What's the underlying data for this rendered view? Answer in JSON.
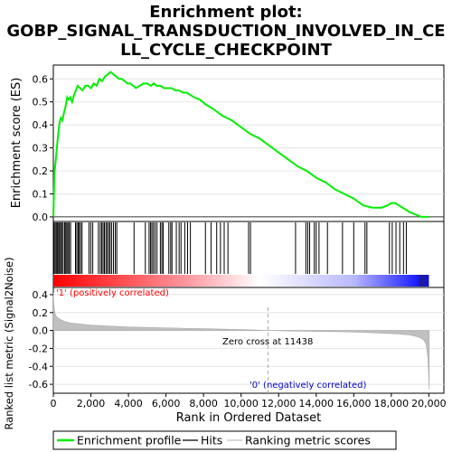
{
  "chart_data": [
    {
      "type": "line",
      "title_lines": [
        "Enrichment plot:",
        "GOBP_SIGNAL_TRANSDUCTION_INVOLVED_IN_CE",
        "LL_CYCLE_CHECKPOINT"
      ],
      "ylabel": "Enrichment score (ES)",
      "xlim": [
        0,
        20800
      ],
      "ylim": [
        -0.02,
        0.66
      ],
      "yticks": [
        0.0,
        0.1,
        0.2,
        0.3,
        0.4,
        0.5,
        0.6
      ],
      "ytick_labels": [
        "0.0",
        "0.1",
        "0.2",
        "0.3",
        "0.4",
        "0.5",
        "0.6"
      ],
      "series": [
        {
          "name": "Enrichment profile",
          "color": "#00ee00",
          "x": [
            0,
            60,
            120,
            200,
            260,
            330,
            400,
            480,
            560,
            650,
            740,
            820,
            900,
            1000,
            1100,
            1200,
            1300,
            1420,
            1550,
            1700,
            1850,
            2000,
            2150,
            2300,
            2450,
            2600,
            2750,
            2900,
            3050,
            3200,
            3350,
            3500,
            3650,
            3800,
            3950,
            4100,
            4250,
            4400,
            4600,
            4800,
            5000,
            5200,
            5350,
            5500,
            5700,
            5900,
            6100,
            6300,
            6500,
            6700,
            6900,
            7100,
            7300,
            7500,
            7800,
            8100,
            8500,
            9000,
            9500,
            10000,
            10500,
            11000,
            11500,
            12000,
            12500,
            13000,
            13500,
            14000,
            14500,
            15000,
            15500,
            16000,
            16500,
            17000,
            17500,
            17800,
            18000,
            18200,
            18400,
            18600,
            18800,
            19000,
            19300,
            19600,
            20000
          ],
          "y": [
            0.0,
            0.19,
            0.24,
            0.31,
            0.36,
            0.41,
            0.43,
            0.42,
            0.45,
            0.48,
            0.52,
            0.51,
            0.52,
            0.5,
            0.53,
            0.55,
            0.57,
            0.56,
            0.55,
            0.57,
            0.57,
            0.56,
            0.58,
            0.57,
            0.6,
            0.59,
            0.61,
            0.62,
            0.63,
            0.62,
            0.61,
            0.6,
            0.6,
            0.59,
            0.58,
            0.58,
            0.57,
            0.56,
            0.57,
            0.58,
            0.58,
            0.57,
            0.58,
            0.57,
            0.57,
            0.56,
            0.56,
            0.56,
            0.55,
            0.55,
            0.54,
            0.54,
            0.53,
            0.52,
            0.51,
            0.49,
            0.47,
            0.44,
            0.42,
            0.39,
            0.36,
            0.34,
            0.31,
            0.28,
            0.25,
            0.22,
            0.2,
            0.17,
            0.15,
            0.12,
            0.1,
            0.08,
            0.05,
            0.04,
            0.04,
            0.05,
            0.06,
            0.06,
            0.05,
            0.04,
            0.03,
            0.02,
            0.01,
            0.0,
            0.0
          ]
        }
      ]
    },
    {
      "type": "scatter",
      "legend_entry": "Hits",
      "hit_color": "#000000",
      "hit_positions": [
        40,
        100,
        160,
        220,
        280,
        330,
        390,
        450,
        520,
        600,
        660,
        720,
        780,
        850,
        920,
        1180,
        1250,
        1320,
        1380,
        1450,
        1530,
        1900,
        2000,
        2100,
        2400,
        2500,
        2580,
        2650,
        2720,
        2800,
        2870,
        2950,
        3020,
        3100,
        3200,
        3300,
        3380,
        4300,
        4900,
        5100,
        5180,
        5250,
        5330,
        5420,
        5520,
        5700,
        5780,
        5850,
        6150,
        6250,
        6320,
        6550,
        6700,
        6800,
        7000,
        7150,
        7300,
        8100,
        8400,
        8700,
        8900,
        9100,
        9300,
        10400,
        10500,
        12900,
        13450,
        13550,
        13650,
        13900,
        14000,
        14150,
        14600,
        15400,
        16000,
        16600,
        16700,
        17900,
        18050,
        18250,
        18450,
        18650,
        18800
      ],
      "ranking_gradient_colors": [
        "#ff0000",
        "#ffffff",
        "#0000ff"
      ]
    },
    {
      "type": "area",
      "ylabel": "Ranked list metric (Signal2Noise)",
      "xlabel": "Rank in Ordered Dataset",
      "xlim": [
        0,
        20800
      ],
      "ylim": [
        -0.7,
        0.48
      ],
      "yticks": [
        -0.6,
        -0.4,
        -0.2,
        0.0,
        0.2,
        0.4
      ],
      "ytick_labels": [
        "-0.6",
        "-0.4",
        "-0.2",
        "0.0",
        "0.2",
        "0.4"
      ],
      "xticks": [
        0,
        2000,
        4000,
        6000,
        8000,
        10000,
        12000,
        14000,
        16000,
        18000,
        20000
      ],
      "xtick_labels": [
        "0",
        "2,000",
        "4,000",
        "6,000",
        "8,000",
        "10,000",
        "12,000",
        "14,000",
        "16,000",
        "18,000",
        "20,000"
      ],
      "zero_cross": 11438,
      "zero_cross_label": "Zero cross at 11438",
      "positive_label": "'1' (positively correlated)",
      "negative_label": "'0' (negatively correlated)",
      "series": [
        {
          "name": "Ranking metric scores",
          "color": "#c0c0c0",
          "x": [
            0,
            30,
            80,
            150,
            250,
            400,
            600,
            900,
            1300,
            2000,
            3000,
            4000,
            5000,
            6000,
            7000,
            8000,
            9000,
            10000,
            11438,
            12500,
            14000,
            15500,
            16500,
            17500,
            18500,
            19000,
            19400,
            19700,
            19850,
            19950,
            20000,
            20020
          ],
          "y": [
            0.42,
            0.27,
            0.2,
            0.16,
            0.14,
            0.12,
            0.1,
            0.085,
            0.075,
            0.06,
            0.05,
            0.04,
            0.035,
            0.03,
            0.025,
            0.02,
            0.015,
            0.01,
            0.0,
            -0.005,
            -0.01,
            -0.015,
            -0.02,
            -0.03,
            -0.04,
            -0.05,
            -0.07,
            -0.1,
            -0.15,
            -0.3,
            -0.55,
            -0.66
          ]
        }
      ]
    }
  ],
  "legend": {
    "profile_label": "Enrichment profile",
    "hits_label": "Hits",
    "metric_label": "Ranking metric scores",
    "profile_color": "#00ee00",
    "hits_color": "#000000",
    "metric_color": "#c0c0c0"
  },
  "colors": {
    "positive_text": "#ff0000",
    "negative_text": "#0000cc",
    "zero_cross_line": "#aaaaaa"
  }
}
